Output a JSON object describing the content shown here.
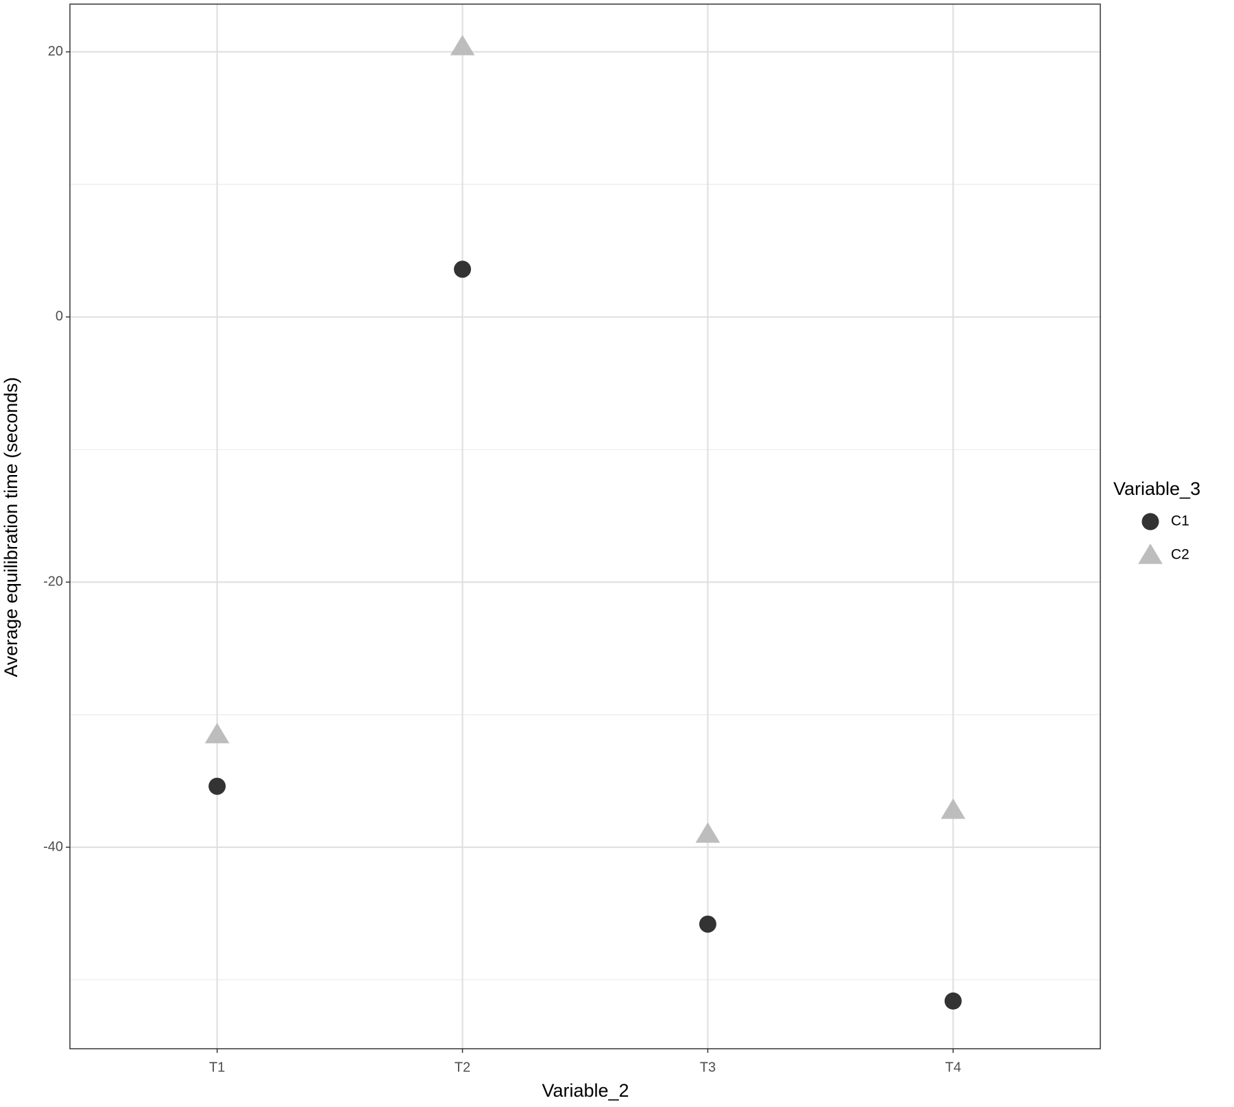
{
  "chart_data": {
    "type": "scatter",
    "x_label": "Variable_2",
    "y_label": "Average equilibration time (seconds)",
    "categories": [
      "T1",
      "T2",
      "T3",
      "T4"
    ],
    "series": [
      {
        "name": "C1",
        "color": "#333333",
        "shape": "circle",
        "values": [
          -35.4,
          3.6,
          -45.8,
          -51.6
        ]
      },
      {
        "name": "C2",
        "color": "#bdbdbd",
        "shape": "triangle",
        "values": [
          -31.5,
          20.4,
          -39.0,
          -37.2
        ]
      }
    ],
    "ylim": [
      -55.2,
      23.6
    ],
    "yticks": [
      -40,
      -20,
      0,
      20
    ],
    "grid": true,
    "legend_title": "Variable_3",
    "legend_position": "right"
  }
}
